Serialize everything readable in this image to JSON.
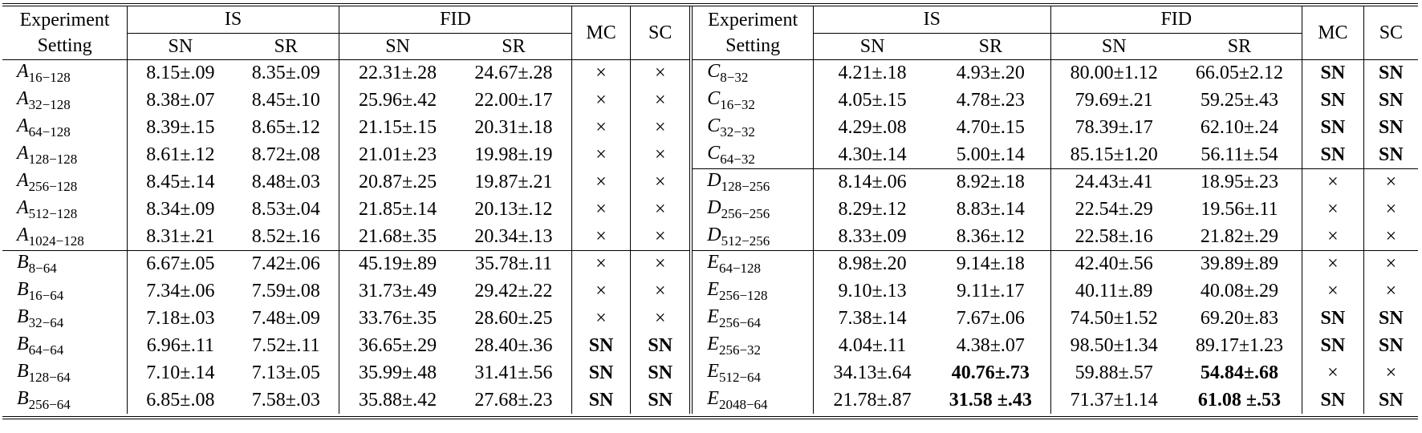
{
  "header": {
    "experiment": "Experiment",
    "setting": "Setting",
    "is": "IS",
    "fid": "FID",
    "sn": "SN",
    "sr": "SR",
    "mc": "MC",
    "sc": "SC"
  },
  "rows": [
    {
      "left": {
        "letter": "A",
        "sub": "16−128",
        "is_sn": "8.15±.09",
        "is_sr": "8.35±.09",
        "fid_sn": "22.31±.28",
        "fid_sr": "24.67±.28",
        "mc": "×",
        "sc": "×"
      },
      "right": {
        "letter": "C",
        "sub": "8−32",
        "is_sn": "4.21±.18",
        "is_sr": "4.93±.20",
        "fid_sn": "80.00±1.12",
        "fid_sr": "66.05±2.12",
        "mc": "SN",
        "sc": "SN"
      }
    },
    {
      "left": {
        "letter": "A",
        "sub": "32−128",
        "is_sn": "8.38±.07",
        "is_sr": "8.45±.10",
        "fid_sn": "25.96±.42",
        "fid_sr": "22.00±.17",
        "mc": "×",
        "sc": "×"
      },
      "right": {
        "letter": "C",
        "sub": "16−32",
        "is_sn": "4.05±.15",
        "is_sr": "4.78±.23",
        "fid_sn": "79.69±.21",
        "fid_sr": "59.25±.43",
        "mc": "SN",
        "sc": "SN"
      }
    },
    {
      "left": {
        "letter": "A",
        "sub": "64−128",
        "is_sn": "8.39±.15",
        "is_sr": "8.65±.12",
        "fid_sn": "21.15±.15",
        "fid_sr": "20.31±.18",
        "mc": "×",
        "sc": "×"
      },
      "right": {
        "letter": "C",
        "sub": "32−32",
        "is_sn": "4.29±.08",
        "is_sr": "4.70±.15",
        "fid_sn": "78.39±.17",
        "fid_sr": "62.10±.24",
        "mc": "SN",
        "sc": "SN"
      }
    },
    {
      "left": {
        "letter": "A",
        "sub": "128−128",
        "is_sn": "8.61±.12",
        "is_sr": "8.72±.08",
        "fid_sn": "21.01±.23",
        "fid_sr": "19.98±.19",
        "mc": "×",
        "sc": "×"
      },
      "right": {
        "letter": "C",
        "sub": "64−32",
        "is_sn": "4.30±.14",
        "is_sr": "5.00±.14",
        "fid_sn": "85.15±1.20",
        "fid_sr": "56.11±.54",
        "mc": "SN",
        "sc": "SN"
      }
    },
    {
      "left": {
        "letter": "A",
        "sub": "256−128",
        "is_sn": "8.45±.14",
        "is_sr": "8.48±.03",
        "fid_sn": "20.87±.25",
        "fid_sr": "19.87±.21",
        "mc": "×",
        "sc": "×"
      },
      "right": {
        "letter": "D",
        "sub": "128−256",
        "is_sn": "8.14±.06",
        "is_sr": "8.92±.18",
        "fid_sn": "24.43±.41",
        "fid_sr": "18.95±.23",
        "mc": "×",
        "sc": "×"
      }
    },
    {
      "left": {
        "letter": "A",
        "sub": "512−128",
        "is_sn": "8.34±.09",
        "is_sr": "8.53±.04",
        "fid_sn": "21.85±.14",
        "fid_sr": "20.13±.12",
        "mc": "×",
        "sc": "×"
      },
      "right": {
        "letter": "D",
        "sub": "256−256",
        "is_sn": "8.29±.12",
        "is_sr": "8.83±.14",
        "fid_sn": "22.54±.29",
        "fid_sr": "19.56±.11",
        "mc": "×",
        "sc": "×"
      }
    },
    {
      "left": {
        "letter": "A",
        "sub": "1024−128",
        "is_sn": "8.31±.21",
        "is_sr": "8.52±.16",
        "fid_sn": "21.68±.35",
        "fid_sr": "20.34±.13",
        "mc": "×",
        "sc": "×"
      },
      "right": {
        "letter": "D",
        "sub": "512−256",
        "is_sn": "8.33±.09",
        "is_sr": "8.36±.12",
        "fid_sn": "22.58±.16",
        "fid_sr": "21.82±.29",
        "mc": "×",
        "sc": "×"
      }
    },
    {
      "left": {
        "letter": "B",
        "sub": "8−64",
        "is_sn": "6.67±.05",
        "is_sr": "7.42±.06",
        "fid_sn": "45.19±.89",
        "fid_sr": "35.78±.11",
        "mc": "×",
        "sc": "×"
      },
      "right": {
        "letter": "E",
        "sub": "64−128",
        "is_sn": "8.98±.20",
        "is_sr": "9.14±.18",
        "fid_sn": "42.40±.56",
        "fid_sr": "39.89±.89",
        "mc": "×",
        "sc": "×"
      }
    },
    {
      "left": {
        "letter": "B",
        "sub": "16−64",
        "is_sn": "7.34±.06",
        "is_sr": "7.59±.08",
        "fid_sn": "31.73±.49",
        "fid_sr": "29.42±.22",
        "mc": "×",
        "sc": "×"
      },
      "right": {
        "letter": "E",
        "sub": "256−128",
        "is_sn": "9.10±.13",
        "is_sr": "9.11±.17",
        "fid_sn": "40.11±.89",
        "fid_sr": "40.08±.29",
        "mc": "×",
        "sc": "×"
      }
    },
    {
      "left": {
        "letter": "B",
        "sub": "32−64",
        "is_sn": "7.18±.03",
        "is_sr": "7.48±.09",
        "fid_sn": "33.76±.35",
        "fid_sr": "28.60±.25",
        "mc": "×",
        "sc": "×"
      },
      "right": {
        "letter": "E",
        "sub": "256−64",
        "is_sn": "7.38±.14",
        "is_sr": "7.67±.06",
        "fid_sn": "74.50±1.52",
        "fid_sr": "69.20±.83",
        "mc": "SN",
        "sc": "SN"
      }
    },
    {
      "left": {
        "letter": "B",
        "sub": "64−64",
        "is_sn": "6.96±.11",
        "is_sr": "7.52±.11",
        "fid_sn": "36.65±.29",
        "fid_sr": "28.40±.36",
        "mc": "SN",
        "sc": "SN"
      },
      "right": {
        "letter": "E",
        "sub": "256−32",
        "is_sn": "4.04±.11",
        "is_sr": "4.38±.07",
        "fid_sn": "98.50±1.34",
        "fid_sr": "89.17±1.23",
        "mc": "SN",
        "sc": "SN"
      }
    },
    {
      "left": {
        "letter": "B",
        "sub": "128−64",
        "is_sn": "7.10±.14",
        "is_sr": "7.13±.05",
        "fid_sn": "35.99±.48",
        "fid_sr": "31.41±.56",
        "mc": "SN",
        "sc": "SN"
      },
      "right": {
        "letter": "E",
        "sub": "512−64",
        "is_sn": "34.13±.64",
        "is_sr": "40.76±.73",
        "fid_sn": "59.88±.57",
        "fid_sr": "54.84±.68",
        "mc": "×",
        "sc": "×"
      }
    },
    {
      "left": {
        "letter": "B",
        "sub": "256−64",
        "is_sn": "6.85±.08",
        "is_sr": "7.58±.03",
        "fid_sn": "35.88±.42",
        "fid_sr": "27.68±.23",
        "mc": "SN",
        "sc": "SN"
      },
      "right": {
        "letter": "E",
        "sub": "2048−64",
        "is_sn": "21.78±.87",
        "is_sr": "31.58 ±.43",
        "fid_sn": "71.37±1.14",
        "fid_sr": "61.08 ±.53",
        "mc": "SN",
        "sc": "SN"
      }
    }
  ]
}
